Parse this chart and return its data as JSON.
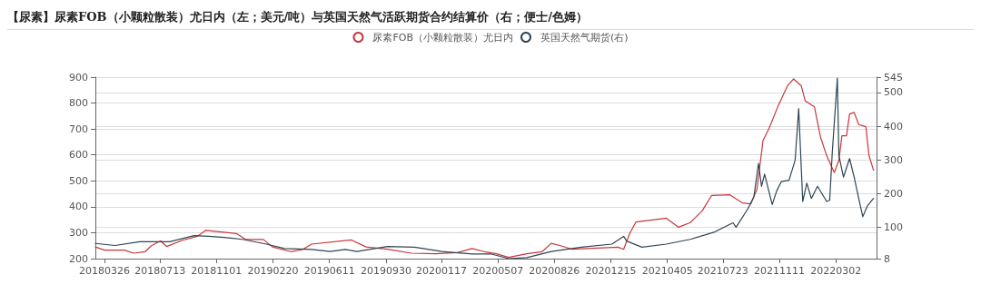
{
  "chart_data": {
    "type": "line",
    "title": "【尿素】尿素FOB（小颗粒散装）尤日内（左；美元/吨）与英国天然气活跃期货合约结算价（右；便士/色姆）",
    "xlim": [
      "2018-03-08",
      "2022-05-21"
    ],
    "xticks": [
      {
        "value": "2018-03-26",
        "label": "20180326"
      },
      {
        "value": "2018-07-13",
        "label": "20180713"
      },
      {
        "value": "2018-11-01",
        "label": "20181101"
      },
      {
        "value": "2019-02-20",
        "label": "20190220"
      },
      {
        "value": "2019-06-11",
        "label": "20190611"
      },
      {
        "value": "2019-09-30",
        "label": "20190930"
      },
      {
        "value": "2020-01-17",
        "label": "20200117"
      },
      {
        "value": "2020-05-07",
        "label": "20200507"
      },
      {
        "value": "2020-08-26",
        "label": "20200826"
      },
      {
        "value": "2020-12-15",
        "label": "20201215"
      },
      {
        "value": "2021-04-05",
        "label": "20210405"
      },
      {
        "value": "2021-07-23",
        "label": "20210723"
      },
      {
        "value": "2021-11-11",
        "label": "20211111"
      },
      {
        "value": "2022-03-02",
        "label": "20220302"
      }
    ],
    "ylim": [
      200,
      900
    ],
    "yticks": [
      200,
      300,
      400,
      500,
      600,
      700,
      800,
      900
    ],
    "y2lim": [
      8,
      545
    ],
    "y2ticks": [
      8,
      100,
      200,
      300,
      400,
      500,
      545
    ],
    "grid": "y",
    "legend": "top",
    "line_style": "solid",
    "series": [
      {
        "name": "尿素FOB（小颗粒散装）尤日内",
        "color": "#c9363a",
        "x": [
          "2018-03-08",
          "2018-03-26",
          "2018-05-04",
          "2018-05-22",
          "2018-06-14",
          "2018-06-26",
          "2018-07-14",
          "2018-07-26",
          "2018-08-25",
          "2018-09-24",
          "2018-10-11",
          "2018-12-10",
          "2018-12-28",
          "2019-02-01",
          "2019-02-19",
          "2019-03-27",
          "2019-04-19",
          "2019-05-07",
          "2019-07-24",
          "2019-08-22",
          "2019-10-03",
          "2019-11-19",
          "2020-01-06",
          "2020-02-17",
          "2020-03-17",
          "2020-04-10",
          "2020-05-04",
          "2020-05-28",
          "2020-07-03",
          "2020-08-02",
          "2020-08-20",
          "2020-09-07",
          "2020-09-30",
          "2020-12-29",
          "2021-01-09",
          "2021-01-21",
          "2021-02-02",
          "2021-03-10",
          "2021-04-03",
          "2021-04-27",
          "2021-05-20",
          "2021-06-13",
          "2021-07-01",
          "2021-08-06",
          "2021-08-30",
          "2021-09-16",
          "2021-09-28",
          "2021-10-10",
          "2021-10-22",
          "2021-11-09",
          "2021-11-27",
          "2021-12-09",
          "2021-12-24",
          "2022-01-01",
          "2022-01-19",
          "2022-01-31",
          "2022-02-12",
          "2022-02-27",
          "2022-03-08",
          "2022-03-14",
          "2022-03-23",
          "2022-03-29",
          "2022-04-07",
          "2022-04-16",
          "2022-04-30",
          "2022-05-06",
          "2022-05-15"
        ],
        "values": [
          245,
          233,
          233,
          221,
          227,
          250,
          268,
          247,
          270,
          286,
          309,
          297,
          274,
          274,
          245,
          227,
          235,
          256,
          272,
          245,
          236,
          221,
          219,
          223,
          239,
          227,
          219,
          205,
          219,
          227,
          259,
          250,
          236,
          244,
          236,
          297,
          341,
          350,
          356,
          321,
          339,
          386,
          444,
          446,
          415,
          411,
          468,
          656,
          703,
          791,
          867,
          893,
          867,
          808,
          785,
          668,
          597,
          532,
          579,
          674,
          674,
          758,
          764,
          717,
          709,
          600,
          541
        ]
      },
      {
        "name": "英国天然气期货(右)",
        "color": "#2f4554",
        "axis": "y2",
        "x": [
          "2018-03-08",
          "2018-04-16",
          "2018-06-03",
          "2018-08-01",
          "2018-09-18",
          "2018-10-17",
          "2018-11-16",
          "2018-12-22",
          "2019-02-07",
          "2019-03-15",
          "2019-05-07",
          "2019-06-12",
          "2019-07-12",
          "2019-08-04",
          "2019-10-03",
          "2019-11-25",
          "2020-01-18",
          "2020-03-17",
          "2020-04-23",
          "2020-05-28",
          "2020-07-03",
          "2020-08-20",
          "2020-10-18",
          "2020-12-17",
          "2021-01-09",
          "2021-01-15",
          "2021-02-14",
          "2021-04-03",
          "2021-05-20",
          "2021-07-07",
          "2021-08-12",
          "2021-08-18",
          "2021-09-10",
          "2021-09-22",
          "2021-10-01",
          "2021-10-07",
          "2021-10-13",
          "2021-10-28",
          "2021-11-06",
          "2021-11-15",
          "2021-11-30",
          "2021-12-12",
          "2021-12-19",
          "2021-12-27",
          "2022-01-04",
          "2022-01-13",
          "2022-01-25",
          "2022-02-12",
          "2022-02-18",
          "2022-02-23",
          "2022-03-05",
          "2022-03-08",
          "2022-03-17",
          "2022-03-29",
          "2022-04-07",
          "2022-04-16",
          "2022-04-24",
          "2022-05-03",
          "2022-05-15"
        ],
        "values": [
          53,
          47,
          58,
          58,
          76,
          74,
          71,
          65,
          51,
          38,
          35,
          29,
          35,
          29,
          44,
          42,
          29,
          22,
          22,
          8,
          11,
          29,
          42,
          51,
          74,
          60,
          42,
          51,
          65,
          87,
          114,
          101,
          155,
          191,
          290,
          222,
          258,
          168,
          209,
          236,
          240,
          299,
          452,
          177,
          231,
          186,
          222,
          177,
          181,
          322,
          542,
          313,
          249,
          304,
          249,
          186,
          132,
          164,
          186
        ]
      }
    ]
  }
}
